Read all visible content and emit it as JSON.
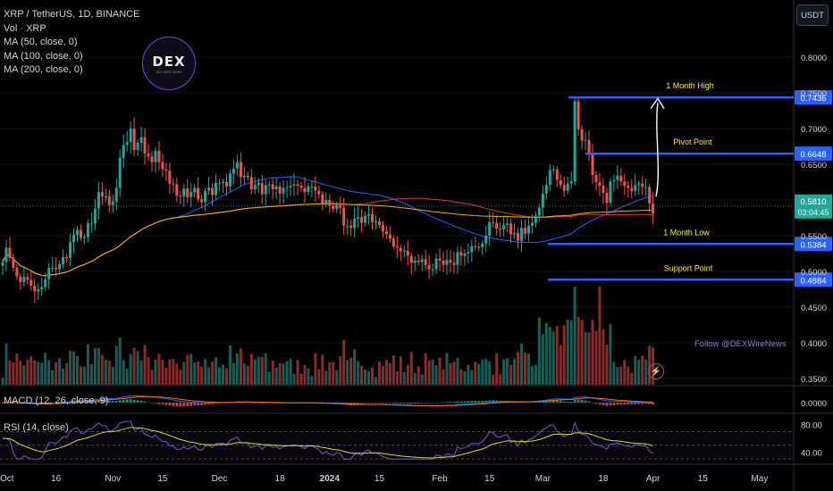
{
  "header": {
    "symbol_line": "XRP / TetherUS, 1D, BINANCE",
    "indicators": [
      "Vol · XRP",
      "MA (50, close, 0)",
      "MA (100, close, 0)",
      "MA (200, close, 0)"
    ],
    "currency_button": "USDT"
  },
  "logo": {
    "text": "DEX",
    "subtext": "DEX WIRE NEWS"
  },
  "watermark": {
    "follow_text": "Follow @DEXWireNews"
  },
  "price_axis": {
    "ticks": [
      "0.8000",
      "0.7500",
      "0.7000",
      "0.6500",
      "0.6000",
      "0.5500",
      "0.5000",
      "0.4500",
      "0.4000",
      "0.3500"
    ],
    "tick_values": [
      0.8,
      0.75,
      0.7,
      0.65,
      0.6,
      0.55,
      0.5,
      0.45,
      0.4,
      0.35
    ],
    "range": [
      0.35,
      0.85
    ],
    "last_price": "0.5810",
    "countdown": "03:04:45"
  },
  "levels": [
    {
      "label": "1 Month High",
      "value": 0.7436,
      "tag": "0.7436"
    },
    {
      "label": "Pivot Point",
      "value": 0.6648,
      "tag": "0.6648"
    },
    {
      "label": "1 Month Low",
      "value": 0.5384,
      "tag": "0.5384"
    },
    {
      "label": "Support Point",
      "value": 0.4884,
      "tag": "0.4884"
    }
  ],
  "macd": {
    "label": "MACD (12, 26, close, 9)",
    "tick": "0.0000"
  },
  "rsi": {
    "label": "RSI (14, close)",
    "ticks": [
      "80.00",
      "40.00"
    ],
    "tick_values": [
      80,
      40
    ]
  },
  "time_axis": {
    "labels": [
      {
        "text": "Oct",
        "day": 0
      },
      {
        "text": "16",
        "day": 15
      },
      {
        "text": "Nov",
        "day": 31
      },
      {
        "text": "15",
        "day": 45
      },
      {
        "text": "Dec",
        "day": 61
      },
      {
        "text": "18",
        "day": 78
      },
      {
        "text": "2024",
        "day": 92
      },
      {
        "text": "15",
        "day": 106
      },
      {
        "text": "Feb",
        "day": 123
      },
      {
        "text": "15",
        "day": 137
      },
      {
        "text": "Mar",
        "day": 152
      },
      {
        "text": "18",
        "day": 169
      },
      {
        "text": "Apr",
        "day": 183
      },
      {
        "text": "15",
        "day": 197
      },
      {
        "text": "May",
        "day": 213
      }
    ]
  },
  "colors": {
    "up": "#26a69a",
    "down": "#ef5350",
    "ma50": "#2962ff",
    "ma100": "#e53935",
    "ma200": "#f7b500",
    "level": "#2962ff",
    "label_text": "#ffeb3b",
    "macd_line": "#2962ff",
    "signal_line": "#ff6d00",
    "rsi_line": "#7e57c2",
    "rsi_ma": "#cddc39"
  },
  "chart_data": {
    "type": "candlestick",
    "start_day_label": "Oct",
    "closes": [
      0.513,
      0.533,
      0.519,
      0.505,
      0.493,
      0.485,
      0.492,
      0.488,
      0.48,
      0.472,
      0.475,
      0.478,
      0.489,
      0.505,
      0.505,
      0.503,
      0.51,
      0.52,
      0.519,
      0.541,
      0.551,
      0.558,
      0.547,
      0.548,
      0.567,
      0.567,
      0.588,
      0.611,
      0.605,
      0.605,
      0.593,
      0.598,
      0.617,
      0.659,
      0.677,
      0.681,
      0.7,
      0.67,
      0.68,
      0.688,
      0.665,
      0.661,
      0.653,
      0.669,
      0.653,
      0.643,
      0.641,
      0.623,
      0.622,
      0.606,
      0.605,
      0.616,
      0.604,
      0.611,
      0.617,
      0.601,
      0.597,
      0.613,
      0.617,
      0.607,
      0.624,
      0.624,
      0.625,
      0.619,
      0.637,
      0.644,
      0.653,
      0.632,
      0.634,
      0.632,
      0.615,
      0.621,
      0.624,
      0.608,
      0.621,
      0.622,
      0.615,
      0.619,
      0.609,
      0.617,
      0.618,
      0.62,
      0.622,
      0.62,
      0.617,
      0.611,
      0.619,
      0.619,
      0.613,
      0.608,
      0.595,
      0.6,
      0.592,
      0.587,
      0.593,
      0.589,
      0.564,
      0.564,
      0.561,
      0.574,
      0.576,
      0.568,
      0.578,
      0.58,
      0.569,
      0.57,
      0.565,
      0.556,
      0.552,
      0.546,
      0.535,
      0.533,
      0.528,
      0.529,
      0.522,
      0.512,
      0.515,
      0.513,
      0.517,
      0.509,
      0.503,
      0.503,
      0.518,
      0.515,
      0.509,
      0.516,
      0.512,
      0.509,
      0.527,
      0.522,
      0.525,
      0.527,
      0.535,
      0.534,
      0.534,
      0.539,
      0.55,
      0.569,
      0.568,
      0.56,
      0.559,
      0.565,
      0.567,
      0.552,
      0.554,
      0.543,
      0.561,
      0.553,
      0.564,
      0.568,
      0.578,
      0.589,
      0.609,
      0.621,
      0.642,
      0.643,
      0.628,
      0.621,
      0.613,
      0.623,
      0.626,
      0.738,
      0.699,
      0.683,
      0.684,
      0.664,
      0.635,
      0.625,
      0.62,
      0.61,
      0.596,
      0.626,
      0.628,
      0.634,
      0.626,
      0.62,
      0.617,
      0.613,
      0.621,
      0.623,
      0.618,
      0.618,
      0.595,
      0.581
    ],
    "note": "Daily XRP/USDT candles from Oct to early April; overlay levels 0.7436, 0.6648, 0.5384, 0.4884"
  }
}
